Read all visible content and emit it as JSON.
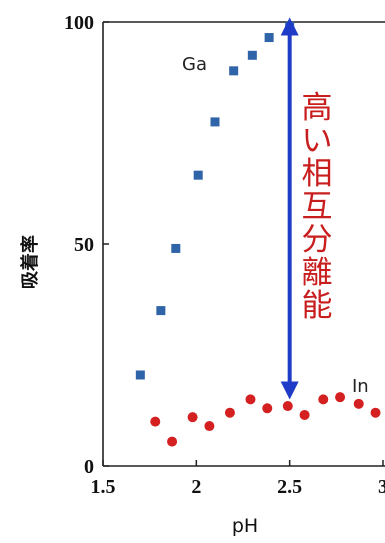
{
  "chart_data": {
    "type": "scatter",
    "title": "",
    "xlabel": "pH",
    "ylabel": "吸着率",
    "xlim": [
      1.5,
      3.0
    ],
    "ylim": [
      0,
      100
    ],
    "x_ticks": [
      1.5,
      2.0,
      2.5,
      3.0
    ],
    "x_tick_labels": [
      "1.5",
      "2",
      "2.5",
      "3"
    ],
    "y_ticks": [
      0,
      50,
      100
    ],
    "y_tick_labels": [
      "0",
      "50",
      "100"
    ],
    "grid": false,
    "legend": "none",
    "series": [
      {
        "name": "Ga",
        "marker": "square",
        "color": "#2f64a8",
        "points": [
          {
            "x": 1.7,
            "y": 20.5
          },
          {
            "x": 1.81,
            "y": 35.0
          },
          {
            "x": 1.89,
            "y": 49.0
          },
          {
            "x": 2.01,
            "y": 65.5
          },
          {
            "x": 2.1,
            "y": 77.5
          },
          {
            "x": 2.2,
            "y": 89.0
          },
          {
            "x": 2.3,
            "y": 92.5
          },
          {
            "x": 2.39,
            "y": 96.5
          },
          {
            "x": 2.5,
            "y": 99.0
          }
        ]
      },
      {
        "name": "In",
        "marker": "circle",
        "color": "#d42020",
        "points": [
          {
            "x": 1.78,
            "y": 10.0
          },
          {
            "x": 1.87,
            "y": 5.5
          },
          {
            "x": 1.98,
            "y": 11.0
          },
          {
            "x": 2.07,
            "y": 9.0
          },
          {
            "x": 2.18,
            "y": 12.0
          },
          {
            "x": 2.29,
            "y": 15.0
          },
          {
            "x": 2.38,
            "y": 13.0
          },
          {
            "x": 2.49,
            "y": 13.5
          },
          {
            "x": 2.58,
            "y": 11.5
          },
          {
            "x": 2.68,
            "y": 15.0
          },
          {
            "x": 2.77,
            "y": 15.5
          },
          {
            "x": 2.87,
            "y": 14.0
          },
          {
            "x": 2.96,
            "y": 12.0
          }
        ]
      }
    ],
    "annotations": [
      {
        "text": "高い相互分離能",
        "color": "#c81e1e",
        "arrow": {
          "x": 2.5,
          "y_from": 17,
          "y_to": 99,
          "direction": "both",
          "color": "#1e3cc8"
        }
      }
    ]
  }
}
